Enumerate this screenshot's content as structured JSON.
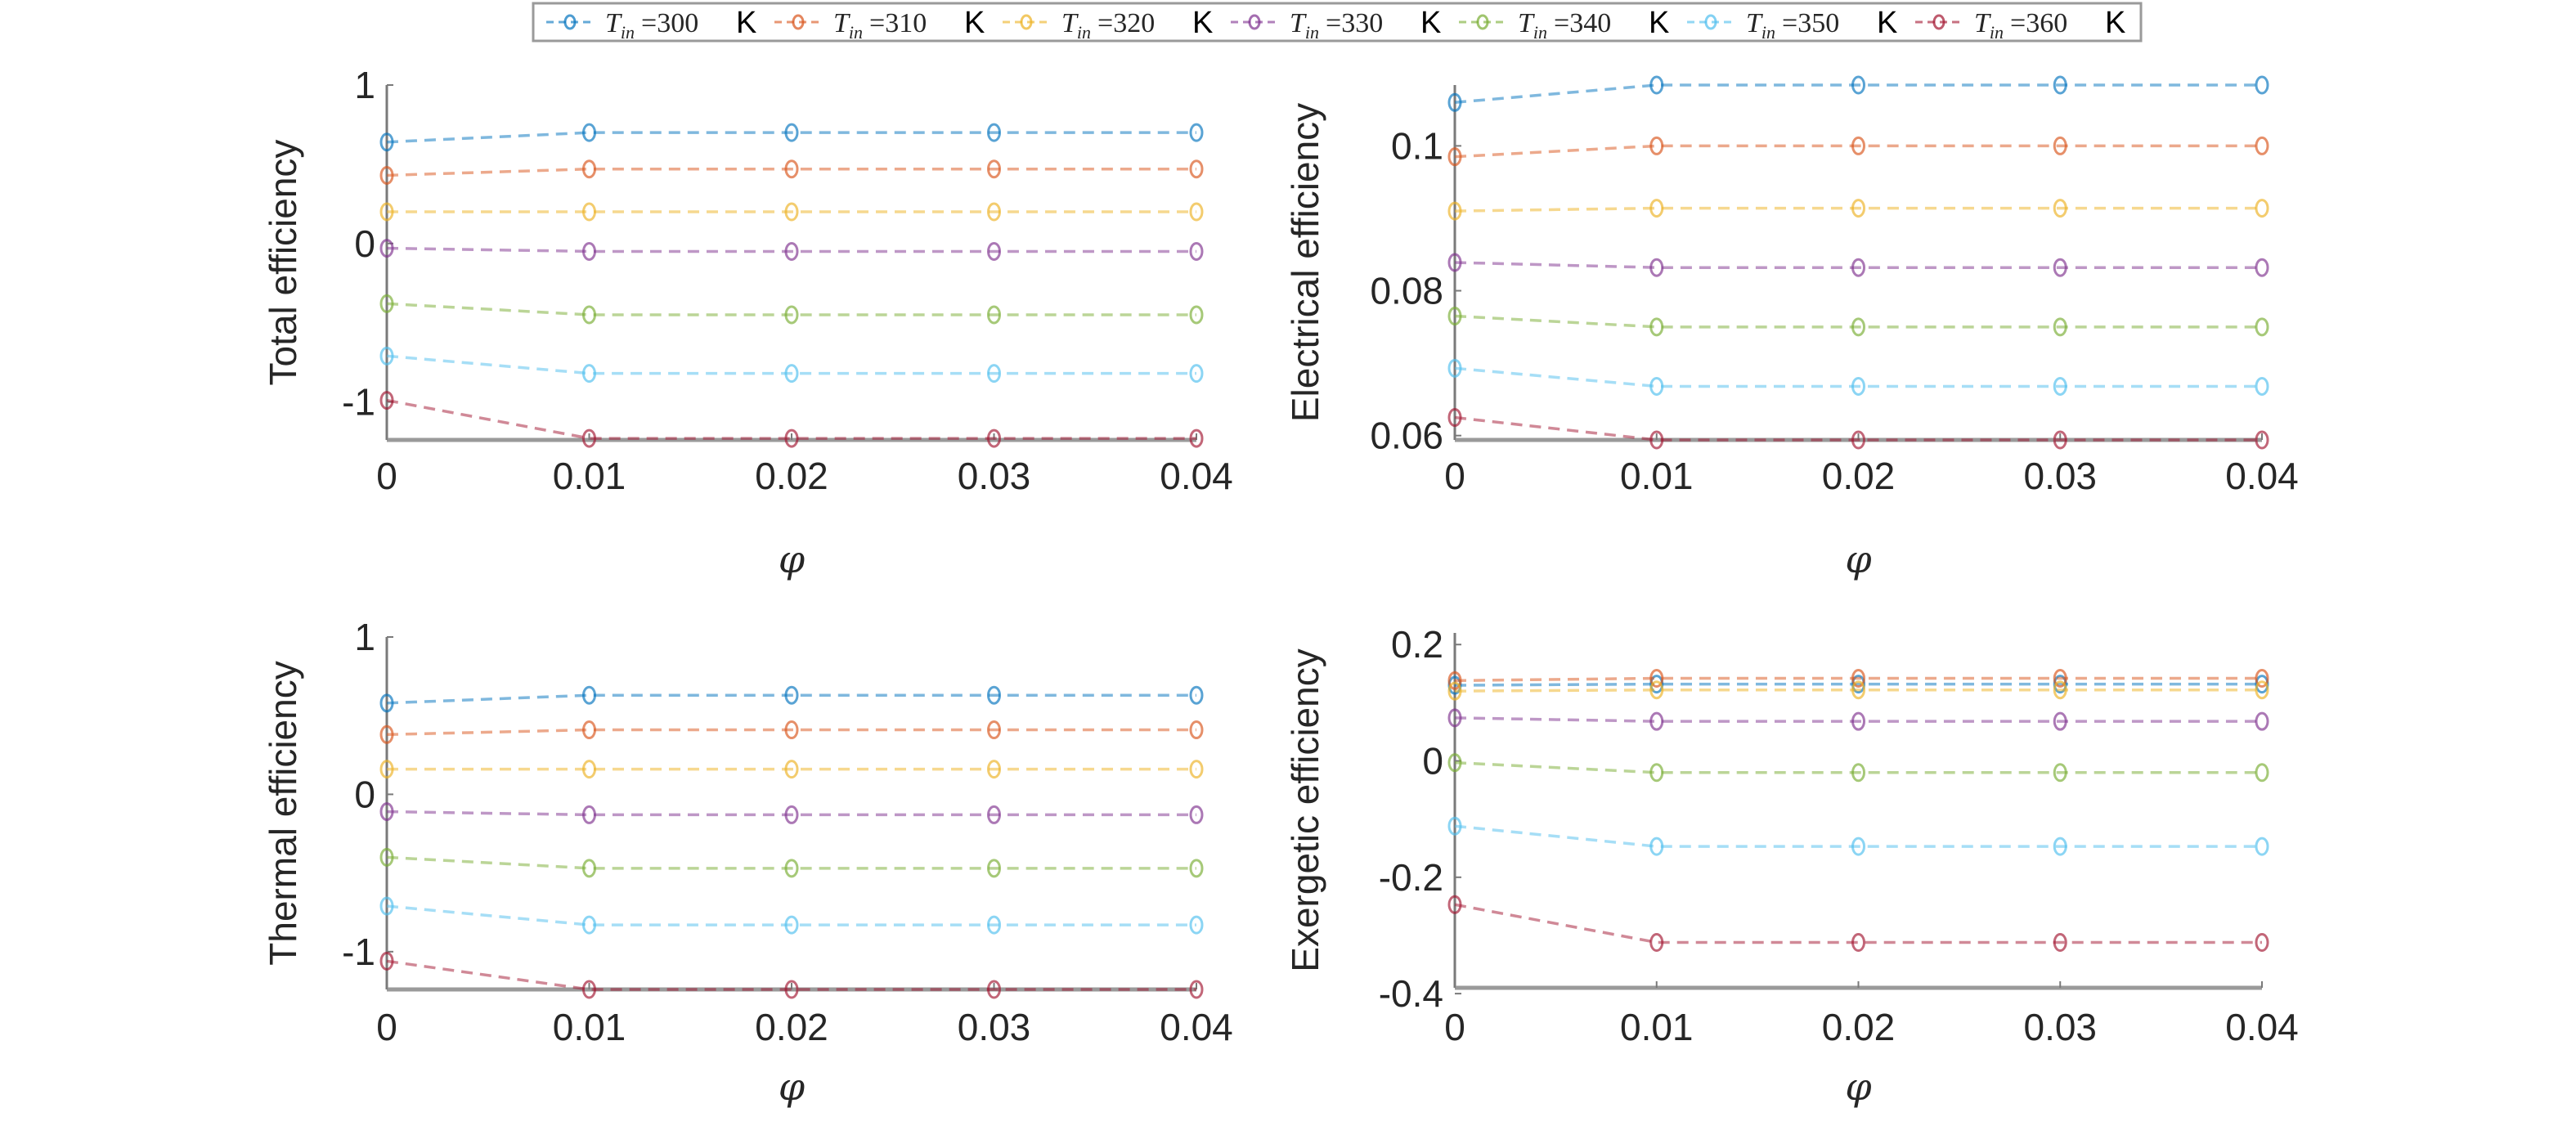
{
  "legend": {
    "entries": [
      {
        "symbol": "T",
        "subscript": "in",
        "value": "=300",
        "unit": "K",
        "color": "#0072BD"
      },
      {
        "symbol": "T",
        "subscript": "in",
        "value": "=310",
        "unit": "K",
        "color": "#D95319"
      },
      {
        "symbol": "T",
        "subscript": "in",
        "value": "=320",
        "unit": "K",
        "color": "#EDB120"
      },
      {
        "symbol": "T",
        "subscript": "in",
        "value": "=330",
        "unit": "K",
        "color": "#7E2F8E"
      },
      {
        "symbol": "T",
        "subscript": "in",
        "value": "=340",
        "unit": "K",
        "color": "#77AC30"
      },
      {
        "symbol": "T",
        "subscript": "in",
        "value": "=350",
        "unit": "K",
        "color": "#4DBEEE"
      },
      {
        "symbol": "T",
        "subscript": "in",
        "value": "=360",
        "unit": "K",
        "color": "#A2142F"
      }
    ],
    "placement": "top-center"
  },
  "chart_data": [
    {
      "type": "line",
      "ylabel": "Total efficiency",
      "xlabel": "φ",
      "x": [
        0,
        0.01,
        0.02,
        0.03,
        0.04
      ],
      "xticks": [
        "0",
        "0.01",
        "0.02",
        "0.03",
        "0.04"
      ],
      "ylim": [
        -1.24,
        1.0
      ],
      "yticks": [
        {
          "v": 1,
          "label": "1"
        },
        {
          "v": 0,
          "label": "0"
        },
        {
          "v": -1,
          "label": "-1"
        }
      ],
      "series": [
        {
          "name": "Tin=300 K",
          "values": [
            0.64,
            0.7,
            0.7,
            0.7,
            0.7
          ]
        },
        {
          "name": "Tin=310 K",
          "values": [
            0.43,
            0.47,
            0.47,
            0.47,
            0.47
          ]
        },
        {
          "name": "Tin=320 K",
          "values": [
            0.2,
            0.2,
            0.2,
            0.2,
            0.2
          ]
        },
        {
          "name": "Tin=330 K",
          "values": [
            -0.03,
            -0.05,
            -0.05,
            -0.05,
            -0.05
          ]
        },
        {
          "name": "Tin=340 K",
          "values": [
            -0.38,
            -0.45,
            -0.45,
            -0.45,
            -0.45
          ]
        },
        {
          "name": "Tin=350 K",
          "values": [
            -0.71,
            -0.82,
            -0.82,
            -0.82,
            -0.82
          ]
        },
        {
          "name": "Tin=360 K",
          "values": [
            -0.99,
            -1.23,
            -1.23,
            -1.23,
            -1.23
          ]
        }
      ]
    },
    {
      "type": "line",
      "ylabel": "Electrical efficiency",
      "xlabel": "φ",
      "x": [
        0,
        0.01,
        0.02,
        0.03,
        0.04
      ],
      "xticks": [
        "0",
        "0.01",
        "0.02",
        "0.03",
        "0.04"
      ],
      "ylim": [
        0.0594,
        0.1084
      ],
      "yticks": [
        {
          "v": 0.1,
          "label": "0.1"
        },
        {
          "v": 0.08,
          "label": "0.08"
        },
        {
          "v": 0.06,
          "label": "0.06"
        }
      ],
      "series": [
        {
          "name": "Tin=300 K",
          "values": [
            0.106,
            0.1084,
            0.1084,
            0.1084,
            0.1084
          ]
        },
        {
          "name": "Tin=310 K",
          "values": [
            0.0985,
            0.1,
            0.1,
            0.1,
            0.1
          ]
        },
        {
          "name": "Tin=320 K",
          "values": [
            0.091,
            0.0914,
            0.0914,
            0.0914,
            0.0914
          ]
        },
        {
          "name": "Tin=330 K",
          "values": [
            0.0839,
            0.0832,
            0.0832,
            0.0832,
            0.0832
          ]
        },
        {
          "name": "Tin=340 K",
          "values": [
            0.0765,
            0.075,
            0.075,
            0.075,
            0.075
          ]
        },
        {
          "name": "Tin=350 K",
          "values": [
            0.0693,
            0.0668,
            0.0668,
            0.0668,
            0.0668
          ]
        },
        {
          "name": "Tin=360 K",
          "values": [
            0.0625,
            0.0594,
            0.0594,
            0.0594,
            0.0594
          ]
        }
      ]
    },
    {
      "type": "line",
      "ylabel": "Thermal efficiency",
      "xlabel": "φ",
      "x": [
        0,
        0.01,
        0.02,
        0.03,
        0.04
      ],
      "xticks": [
        "0",
        "0.01",
        "0.02",
        "0.03",
        "0.04"
      ],
      "ylim": [
        -1.24,
        1.0
      ],
      "yticks": [
        {
          "v": 1,
          "label": "1"
        },
        {
          "v": 0,
          "label": "0"
        },
        {
          "v": -1,
          "label": "-1"
        }
      ],
      "series": [
        {
          "name": "Tin=300 K",
          "values": [
            0.58,
            0.63,
            0.63,
            0.63,
            0.63
          ]
        },
        {
          "name": "Tin=310 K",
          "values": [
            0.38,
            0.41,
            0.41,
            0.41,
            0.41
          ]
        },
        {
          "name": "Tin=320 K",
          "values": [
            0.16,
            0.16,
            0.16,
            0.16,
            0.16
          ]
        },
        {
          "name": "Tin=330 K",
          "values": [
            -0.11,
            -0.13,
            -0.13,
            -0.13,
            -0.13
          ]
        },
        {
          "name": "Tin=340 K",
          "values": [
            -0.4,
            -0.47,
            -0.47,
            -0.47,
            -0.47
          ]
        },
        {
          "name": "Tin=350 K",
          "values": [
            -0.71,
            -0.83,
            -0.83,
            -0.83,
            -0.83
          ]
        },
        {
          "name": "Tin=360 K",
          "values": [
            -1.06,
            -1.24,
            -1.24,
            -1.24,
            -1.24
          ]
        }
      ]
    },
    {
      "type": "line",
      "ylabel": "Exergetic efficiency",
      "xlabel": "φ",
      "x": [
        0,
        0.01,
        0.02,
        0.03,
        0.04
      ],
      "xticks": [
        "0",
        "0.01",
        "0.02",
        "0.03",
        "0.04"
      ],
      "ylim": [
        -0.39,
        0.22
      ],
      "yticks": [
        {
          "v": 0.2,
          "label": "0.2"
        },
        {
          "v": 0,
          "label": "0"
        },
        {
          "v": -0.2,
          "label": "-0.2"
        },
        {
          "v": -0.4,
          "label": "-0.4"
        }
      ],
      "series": [
        {
          "name": "Tin=300 K",
          "values": [
            0.13,
            0.132,
            0.132,
            0.132,
            0.132
          ]
        },
        {
          "name": "Tin=310 K",
          "values": [
            0.138,
            0.142,
            0.142,
            0.142,
            0.142
          ]
        },
        {
          "name": "Tin=320 K",
          "values": [
            0.12,
            0.122,
            0.122,
            0.122,
            0.122
          ]
        },
        {
          "name": "Tin=330 K",
          "values": [
            0.074,
            0.068,
            0.068,
            0.068,
            0.068
          ]
        },
        {
          "name": "Tin=340 K",
          "values": [
            -0.003,
            -0.02,
            -0.02,
            -0.02,
            -0.02
          ]
        },
        {
          "name": "Tin=350 K",
          "values": [
            -0.112,
            -0.147,
            -0.147,
            -0.147,
            -0.147
          ]
        },
        {
          "name": "Tin=360 K",
          "values": [
            -0.247,
            -0.312,
            -0.312,
            -0.312,
            -0.312
          ]
        }
      ]
    }
  ]
}
